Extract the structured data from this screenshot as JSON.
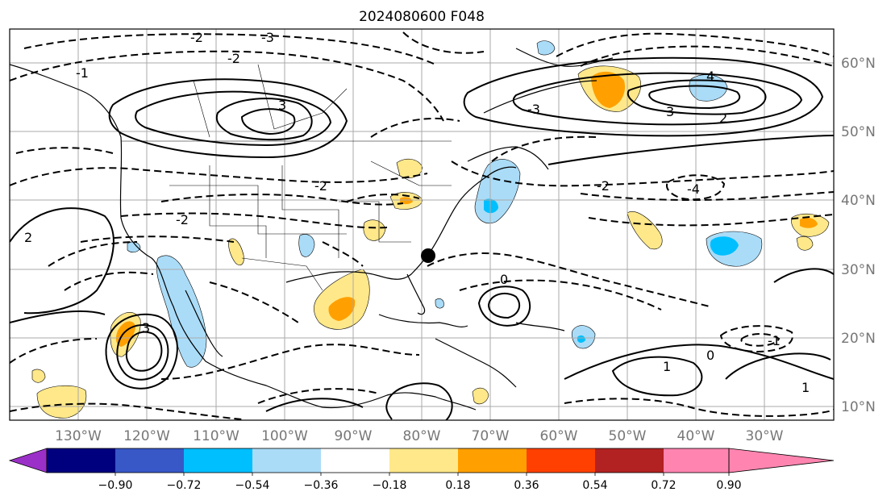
{
  "title": "2024080600 F048",
  "map": {
    "lon_labels": [
      "130°W",
      "120°W",
      "110°W",
      "100°W",
      "90°W",
      "80°W",
      "70°W",
      "60°W",
      "50°W",
      "40°W",
      "30°W"
    ],
    "lat_labels": [
      "60°N",
      "50°N",
      "40°N",
      "30°N",
      "20°N",
      "10°N"
    ],
    "marker": "storm-center-dot"
  },
  "colorbar": {
    "tick_labels": [
      "−0.90",
      "−0.72",
      "−0.54",
      "−0.36",
      "−0.18",
      "0.18",
      "0.36",
      "0.54",
      "0.72",
      "0.90"
    ],
    "colors": {
      "below_min": "#9b30c8",
      "bins": [
        "#00007f",
        "#3858c8",
        "#00bfff",
        "#aadcf8",
        "#ffffff",
        "#ffe88a",
        "#ffa000",
        "#ff4000",
        "#b22222"
      ],
      "above_max": "#ff85b0"
    }
  },
  "contour_labels": {
    "positive": [
      "3",
      "4",
      "3",
      "2",
      "3",
      "1",
      "0",
      "0",
      "1",
      "2"
    ],
    "negative": [
      "-2",
      "-3",
      "-2",
      "-1",
      "-2",
      "-3",
      "-4",
      "-2",
      "-1",
      "-2"
    ]
  }
}
